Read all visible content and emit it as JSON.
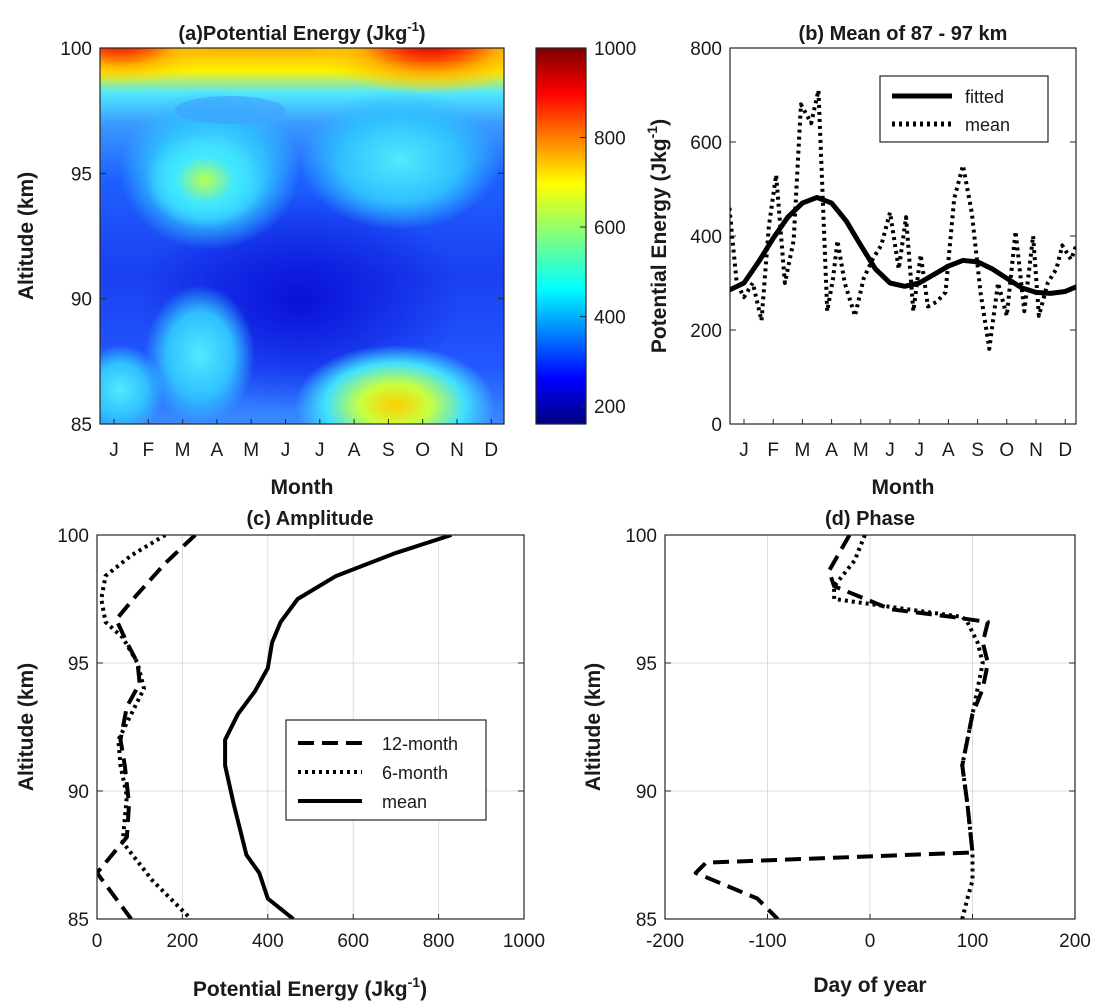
{
  "chart_data": [
    {
      "panel": "a",
      "type": "heatmap",
      "title": "(a)Potential Energy (Jkg",
      "title_sup": "-1",
      "title_close": ")",
      "xlabel": "Month",
      "ylabel": "Altitude (km)",
      "x_categories": [
        "J",
        "F",
        "M",
        "A",
        "M",
        "J",
        "J",
        "A",
        "S",
        "O",
        "N",
        "D"
      ],
      "ylim": [
        85,
        100
      ],
      "yticks": [
        "85",
        "90",
        "95",
        "100"
      ],
      "colorbar": {
        "range": [
          160,
          1000
        ],
        "ticks": [
          "200",
          "400",
          "600",
          "800",
          "1000"
        ],
        "colormap": "jet"
      },
      "features": [
        {
          "month": 3.2,
          "alt": 94.5,
          "value": 620
        },
        {
          "month": 3.2,
          "alt": 88.5,
          "value": 480
        },
        {
          "month": 9.1,
          "alt": 85.3,
          "value": 700
        },
        {
          "month": 9.5,
          "alt": 100,
          "value": 1000
        },
        {
          "month": 0.5,
          "alt": 100,
          "value": 920
        },
        {
          "month": 6.0,
          "alt": 91,
          "value": 200
        },
        {
          "month": 10.5,
          "alt": 92,
          "value": 230
        }
      ]
    },
    {
      "panel": "b",
      "type": "line",
      "title": "(b) Mean of 87 - 97 km",
      "xlabel": "Month",
      "ylabel": "Potential Energy (Jkg",
      "ylabel_sup": "-1",
      "ylabel_close": ")",
      "x_categories": [
        "J",
        "F",
        "M",
        "A",
        "M",
        "J",
        "J",
        "A",
        "S",
        "O",
        "N",
        "D"
      ],
      "ylim": [
        0,
        800
      ],
      "yticks": [
        "0",
        "200",
        "400",
        "600",
        "800"
      ],
      "legend": {
        "position": "top-right",
        "entries": [
          "fitted",
          "mean"
        ]
      },
      "series": [
        {
          "name": "fitted",
          "style": "solid",
          "x": [
            -0.5,
            0,
            0.5,
            1,
            1.5,
            2,
            2.5,
            3,
            3.5,
            4,
            4.5,
            5,
            5.5,
            6,
            6.5,
            7,
            7.5,
            8,
            8.5,
            9,
            9.5,
            10,
            10.5,
            11,
            11.5
          ],
          "y": [
            285,
            300,
            345,
            395,
            440,
            470,
            482,
            470,
            432,
            380,
            330,
            300,
            293,
            300,
            318,
            336,
            348,
            345,
            330,
            310,
            290,
            280,
            278,
            282,
            295
          ]
        },
        {
          "name": "mean",
          "style": "dotted",
          "x": [
            -0.5,
            -0.25,
            0,
            0.3,
            0.6,
            0.85,
            1.1,
            1.4,
            1.7,
            1.95,
            2.3,
            2.55,
            2.85,
            3.05,
            3.2,
            3.45,
            3.8,
            4.1,
            4.4,
            4.7,
            5.0,
            5.3,
            5.55,
            5.8,
            6.05,
            6.3,
            6.6,
            6.9,
            7.2,
            7.5,
            7.8,
            8.1,
            8.4,
            8.7,
            9.0,
            9.3,
            9.6,
            9.9,
            10.1,
            10.4,
            10.7,
            10.9,
            11.2,
            11.5
          ],
          "y": [
            460,
            300,
            270,
            300,
            220,
            420,
            530,
            300,
            390,
            680,
            640,
            710,
            240,
            310,
            390,
            300,
            230,
            310,
            350,
            380,
            450,
            330,
            440,
            240,
            360,
            250,
            260,
            280,
            480,
            550,
            450,
            280,
            160,
            300,
            230,
            410,
            240,
            400,
            230,
            300,
            330,
            380,
            350,
            400
          ]
        }
      ]
    },
    {
      "panel": "c",
      "type": "line",
      "title": "(c) Amplitude",
      "xlabel": "Potential Energy (Jkg",
      "xlabel_sup": "-1",
      "xlabel_close": ")",
      "ylabel": "Altitude (km)",
      "xlim": [
        0,
        1000
      ],
      "xticks": [
        "0",
        "200",
        "400",
        "600",
        "800",
        "1000"
      ],
      "ylim": [
        85,
        100
      ],
      "yticks": [
        "85",
        "90",
        "95",
        "100"
      ],
      "grid": true,
      "legend": {
        "position": "middle-right",
        "entries": [
          "12-month",
          "6-month",
          "mean"
        ]
      },
      "series": [
        {
          "name": "12-month",
          "style": "dashed",
          "x": [
            230,
            160,
            90,
            45,
            70,
            95,
            100,
            70,
            55,
            65,
            75,
            70,
            0,
            80
          ],
          "y": [
            100,
            98.9,
            97.6,
            96.7,
            95.8,
            95.0,
            94.2,
            93.3,
            92.0,
            91.0,
            89.5,
            88.2,
            86.8,
            85.0
          ]
        },
        {
          "name": "6-month",
          "style": "dotted",
          "x": [
            160,
            80,
            20,
            10,
            20,
            60,
            95,
            110,
            80,
            50,
            55,
            70,
            60,
            130,
            220
          ],
          "y": [
            100,
            99.2,
            98.4,
            97.5,
            96.6,
            96.0,
            95.0,
            94.0,
            93.0,
            92.0,
            91.0,
            89.8,
            88.0,
            86.5,
            85.0
          ]
        },
        {
          "name": "mean",
          "style": "solid",
          "x": [
            830,
            700,
            560,
            470,
            430,
            410,
            400,
            370,
            330,
            300,
            300,
            320,
            350,
            380,
            400,
            460
          ],
          "y": [
            100,
            99.3,
            98.4,
            97.5,
            96.6,
            95.8,
            94.8,
            93.9,
            93.0,
            92.0,
            91.0,
            89.5,
            87.5,
            86.8,
            85.8,
            85.0
          ]
        }
      ]
    },
    {
      "panel": "d",
      "type": "line",
      "title": "(d) Phase",
      "xlabel": "Day of year",
      "ylabel": "Altitude (km)",
      "xlim": [
        -200,
        200
      ],
      "xticks": [
        "-200",
        "-100",
        "0",
        "100",
        "200"
      ],
      "ylim": [
        85,
        100
      ],
      "yticks": [
        "85",
        "90",
        "95",
        "100"
      ],
      "grid": true,
      "series": [
        {
          "name": "12-month",
          "style": "dashed",
          "x": [
            -20,
            -30,
            -40,
            -35,
            20,
            80,
            115,
            110,
            115,
            110,
            100,
            90,
            95,
            100,
            -160,
            -170,
            -110,
            -90
          ],
          "y": [
            100,
            99.3,
            98.6,
            98.0,
            97.1,
            96.8,
            96.6,
            95.8,
            95.0,
            94.0,
            93.0,
            91.0,
            89.5,
            87.6,
            87.2,
            86.8,
            85.8,
            85.0
          ]
        },
        {
          "name": "6-month",
          "style": "dotted",
          "x": [
            -5,
            -15,
            -25,
            -35,
            -35,
            90,
            95,
            105,
            110,
            105,
            100,
            90,
            95,
            100,
            100,
            95,
            90
          ],
          "y": [
            100,
            99.0,
            98.5,
            98.0,
            97.5,
            96.8,
            96.6,
            95.8,
            95.0,
            94.0,
            93.0,
            91.0,
            89.5,
            87.6,
            86.5,
            85.8,
            85.0
          ]
        }
      ]
    }
  ]
}
